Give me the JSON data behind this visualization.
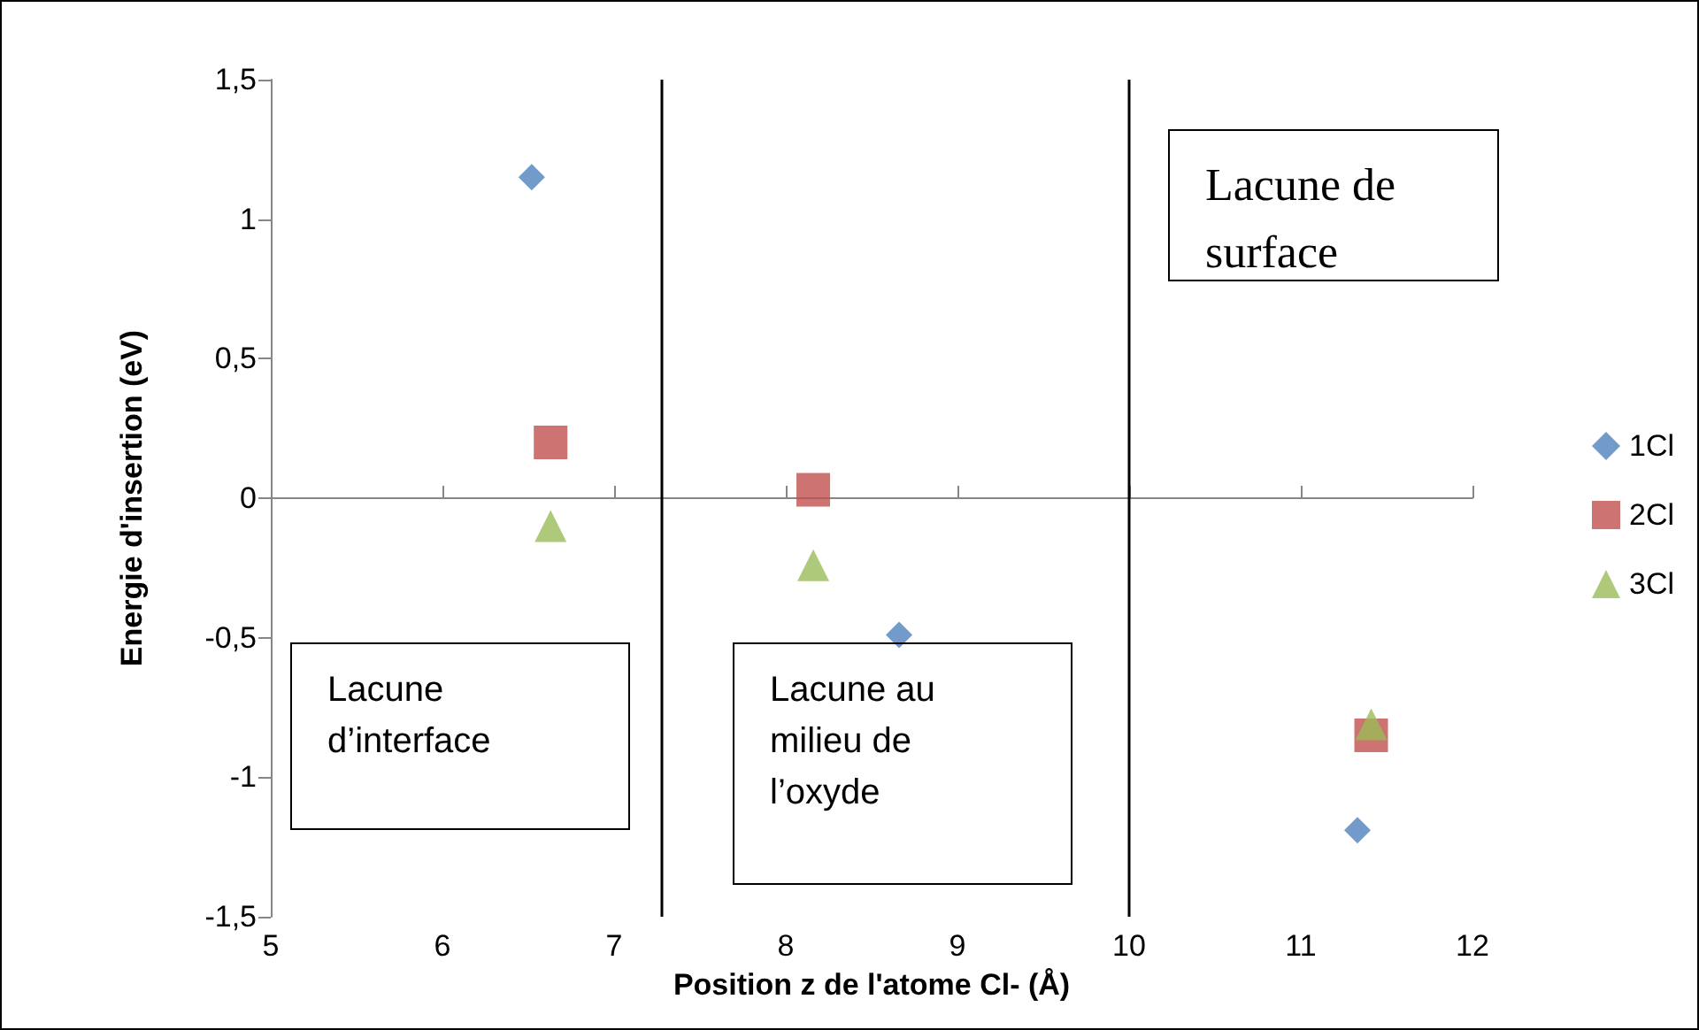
{
  "chart_data": {
    "type": "scatter",
    "xlabel": "Position z de l'atome Cl- (Å)",
    "ylabel": "Energie d'insertion (eV)",
    "xlim": [
      5,
      12
    ],
    "xticks": [
      5,
      6,
      7,
      8,
      9,
      10,
      11,
      12
    ],
    "ylim": [
      -1.5,
      1.5
    ],
    "yticks": [
      {
        "value": -1.5,
        "label": "-1,5"
      },
      {
        "value": -1,
        "label": "-1"
      },
      {
        "value": -0.5,
        "label": "-0,5"
      },
      {
        "value": 0,
        "label": "0"
      },
      {
        "value": 0.5,
        "label": "0,5"
      },
      {
        "value": 1,
        "label": "1"
      },
      {
        "value": 1.5,
        "label": "1,5"
      }
    ],
    "grid": false,
    "legend": "right",
    "series": [
      {
        "name": "1Cl",
        "color": "#4f81bd",
        "marker": "diamond",
        "x": [
          6.52,
          8.66,
          11.33
        ],
        "values": [
          1.15,
          -0.49,
          -1.19
        ]
      },
      {
        "name": "2Cl",
        "color": "#c0504d",
        "marker": "square",
        "x": [
          6.63,
          8.16,
          11.41
        ],
        "values": [
          0.2,
          0.03,
          -0.85
        ]
      },
      {
        "name": "3Cl",
        "color": "#9bbb59",
        "marker": "triangle",
        "x": [
          6.63,
          8.16,
          11.41
        ],
        "values": [
          -0.1,
          -0.24,
          -0.81
        ]
      }
    ],
    "ref_lines": [
      {
        "axis": "x",
        "value": 7.28,
        "color": "#000000"
      },
      {
        "axis": "x",
        "value": 10,
        "color": "#000000"
      }
    ],
    "annotations": [
      "Lacune d’interface",
      "Lacune au milieu de l’oxyde",
      "Lacune de surface"
    ]
  }
}
